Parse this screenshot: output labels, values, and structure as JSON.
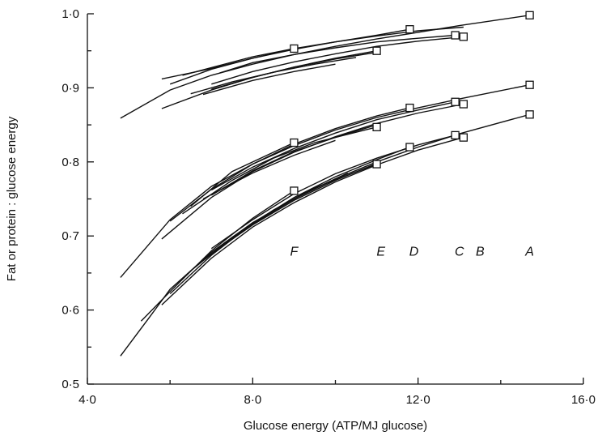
{
  "chart_data": {
    "type": "line",
    "xlabel": "Glucose energy (ATP/MJ glucose)",
    "ylabel": "Fat or protein : glucose energy",
    "xlim": [
      4.0,
      16.0
    ],
    "ylim": [
      0.5,
      1.0
    ],
    "xticks": [
      {
        "value": 4.0,
        "label": "4·0"
      },
      {
        "value": 8.0,
        "label": "8·0"
      },
      {
        "value": 12.0,
        "label": "12·0"
      },
      {
        "value": 16.0,
        "label": "16·0"
      }
    ],
    "yticks": [
      {
        "value": 0.5,
        "label": "0·5"
      },
      {
        "value": 0.6,
        "label": "0·6"
      },
      {
        "value": 0.7,
        "label": "0·7"
      },
      {
        "value": 0.8,
        "label": "0·8"
      },
      {
        "value": 0.9,
        "label": "0·9"
      },
      {
        "value": 1.0,
        "label": "1·0"
      }
    ],
    "condition_labels": [
      {
        "text": "F",
        "x": 9.0,
        "y": 0.68
      },
      {
        "text": "E",
        "x": 11.1,
        "y": 0.68
      },
      {
        "text": "D",
        "x": 11.9,
        "y": 0.68
      },
      {
        "text": "C",
        "x": 13.0,
        "y": 0.68
      },
      {
        "text": "B",
        "x": 13.5,
        "y": 0.68
      },
      {
        "text": "A",
        "x": 14.7,
        "y": 0.68
      }
    ],
    "series": [
      {
        "group": "top",
        "x": [
          4.8,
          6.0,
          7.0,
          8.0,
          9.0,
          10.0,
          11.0,
          12.0,
          13.0,
          14.7
        ],
        "y": [
          0.859,
          0.897,
          0.917,
          0.932,
          0.945,
          0.956,
          0.966,
          0.975,
          0.984,
          0.998
        ],
        "marker_x": 14.7
      },
      {
        "group": "top",
        "x": [
          5.8,
          7.0,
          8.0,
          9.0,
          10.0,
          11.0,
          12.0,
          13.1
        ],
        "y": [
          0.912,
          0.926,
          0.94,
          0.952,
          0.962,
          0.97,
          0.977,
          0.982
        ]
      },
      {
        "group": "top",
        "x": [
          6.3,
          8.0,
          9.0,
          10.0,
          11.0,
          11.8
        ],
        "y": [
          0.917,
          0.942,
          0.953,
          0.962,
          0.971,
          0.979
        ],
        "marker_x": 11.8
      },
      {
        "group": "top",
        "x": [
          6.0,
          7.0,
          8.0,
          9.0
        ],
        "y": [
          0.905,
          0.925,
          0.94,
          0.953
        ],
        "marker_x": 9.0
      },
      {
        "group": "top",
        "x": [
          7.2,
          8.0,
          9.0,
          10.0,
          11.0,
          12.0,
          12.9
        ],
        "y": [
          0.92,
          0.934,
          0.945,
          0.954,
          0.962,
          0.967,
          0.971
        ],
        "marker_x": 12.9
      },
      {
        "group": "top",
        "x": [
          7.0,
          8.0,
          9.0,
          10.0,
          11.0,
          12.0,
          13.1
        ],
        "y": [
          0.905,
          0.922,
          0.935,
          0.946,
          0.956,
          0.963,
          0.969
        ],
        "marker_x": 13.1
      },
      {
        "group": "top",
        "x": [
          5.8,
          7.0,
          8.0,
          9.0,
          10.0,
          11.0
        ],
        "y": [
          0.872,
          0.897,
          0.914,
          0.928,
          0.94,
          0.95
        ],
        "marker_x": 11.0
      },
      {
        "group": "top",
        "x": [
          6.8,
          8.0,
          9.0,
          10.0
        ],
        "y": [
          0.891,
          0.91,
          0.922,
          0.932
        ]
      },
      {
        "group": "top",
        "x": [
          7.0,
          8.0,
          9.0,
          10.0,
          11.0
        ],
        "y": [
          0.898,
          0.914,
          0.928,
          0.939,
          0.948
        ]
      },
      {
        "group": "top",
        "x": [
          6.5,
          7.5,
          8.5,
          9.5,
          10.5
        ],
        "y": [
          0.892,
          0.908,
          0.921,
          0.932,
          0.941
        ]
      },
      {
        "group": "middle",
        "x": [
          4.8,
          6.0,
          7.0,
          8.0,
          9.0,
          10.0,
          11.0,
          12.0,
          13.0,
          14.7
        ],
        "y": [
          0.644,
          0.722,
          0.767,
          0.797,
          0.822,
          0.843,
          0.86,
          0.873,
          0.885,
          0.904
        ],
        "marker_x": 14.7
      },
      {
        "group": "middle",
        "x": [
          5.8,
          7.0,
          8.0,
          9.0,
          10.0,
          11.0,
          12.0,
          13.1
        ],
        "y": [
          0.696,
          0.752,
          0.787,
          0.813,
          0.834,
          0.852,
          0.866,
          0.878
        ],
        "marker_x": 13.1
      },
      {
        "group": "middle",
        "x": [
          6.0,
          7.0,
          8.0,
          9.0,
          10.0,
          11.0,
          11.8
        ],
        "y": [
          0.72,
          0.763,
          0.797,
          0.824,
          0.845,
          0.862,
          0.873
        ],
        "marker_x": 11.8
      },
      {
        "group": "middle",
        "x": [
          6.5,
          7.5,
          9.0
        ],
        "y": [
          0.74,
          0.787,
          0.826
        ],
        "marker_x": 9.0
      },
      {
        "group": "middle",
        "x": [
          7.0,
          8.0,
          9.0,
          10.0,
          11.0,
          12.0,
          12.9
        ],
        "y": [
          0.762,
          0.793,
          0.818,
          0.839,
          0.857,
          0.87,
          0.881
        ],
        "marker_x": 12.9
      },
      {
        "group": "middle",
        "x": [
          6.3,
          7.5,
          8.5,
          9.5,
          11.0
        ],
        "y": [
          0.73,
          0.775,
          0.805,
          0.826,
          0.847
        ],
        "marker_x": 11.0
      },
      {
        "group": "middle",
        "x": [
          7.0,
          8.0,
          9.0,
          10.0,
          11.0
        ],
        "y": [
          0.755,
          0.788,
          0.814,
          0.833,
          0.85
        ]
      },
      {
        "group": "middle",
        "x": [
          6.8,
          8.0,
          9.0,
          10.0
        ],
        "y": [
          0.75,
          0.785,
          0.809,
          0.829
        ]
      },
      {
        "group": "bottom",
        "x": [
          4.8,
          5.5,
          6.0,
          7.0,
          8.0,
          9.0,
          10.0,
          11.0,
          12.0,
          13.0,
          14.7
        ],
        "y": [
          0.538,
          0.59,
          0.628,
          0.678,
          0.718,
          0.75,
          0.777,
          0.8,
          0.82,
          0.838,
          0.864
        ],
        "marker_x": 14.7
      },
      {
        "group": "bottom",
        "x": [
          5.8,
          7.0,
          8.0,
          9.0,
          10.0,
          11.0,
          12.0,
          13.1
        ],
        "y": [
          0.607,
          0.67,
          0.712,
          0.745,
          0.773,
          0.796,
          0.816,
          0.833
        ],
        "marker_x": 13.1
      },
      {
        "group": "bottom",
        "x": [
          5.3,
          6.0,
          7.0,
          8.0,
          9.0
        ],
        "y": [
          0.585,
          0.625,
          0.68,
          0.724,
          0.761
        ],
        "marker_x": 9.0
      },
      {
        "group": "bottom",
        "x": [
          6.0,
          7.0,
          8.0,
          9.0,
          10.0,
          11.0,
          11.8
        ],
        "y": [
          0.622,
          0.674,
          0.717,
          0.752,
          0.78,
          0.803,
          0.82
        ],
        "marker_x": 11.8
      },
      {
        "group": "bottom",
        "x": [
          7.0,
          8.0,
          9.0,
          10.0,
          11.0,
          12.0,
          12.9
        ],
        "y": [
          0.683,
          0.722,
          0.757,
          0.784,
          0.805,
          0.823,
          0.836
        ],
        "marker_x": 12.9
      },
      {
        "group": "bottom",
        "x": [
          6.5,
          7.5,
          8.5,
          9.5,
          11.0
        ],
        "y": [
          0.653,
          0.698,
          0.735,
          0.765,
          0.797
        ],
        "marker_x": 11.0
      },
      {
        "group": "bottom",
        "x": [
          6.8,
          8.0,
          9.0,
          10.0,
          11.0
        ],
        "y": [
          0.668,
          0.715,
          0.748,
          0.775,
          0.798
        ]
      },
      {
        "group": "bottom",
        "x": [
          7.3,
          8.3,
          9.3,
          10.3
        ],
        "y": [
          0.69,
          0.728,
          0.759,
          0.785
        ]
      },
      {
        "group": "bottom",
        "x": [
          7.0,
          8.0,
          9.0,
          10.0
        ],
        "y": [
          0.676,
          0.716,
          0.75,
          0.777
        ]
      }
    ]
  }
}
